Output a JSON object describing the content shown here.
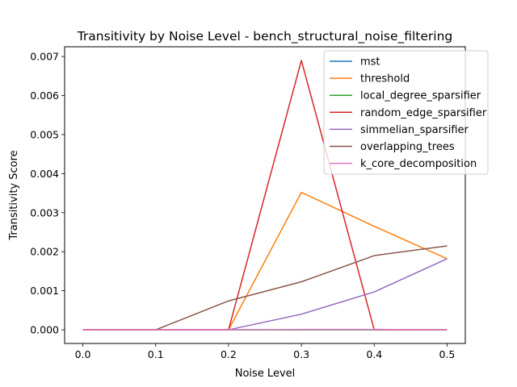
{
  "chart_data": {
    "type": "line",
    "title": "Transitivity by Noise Level - bench_structural_noise_filtering",
    "xlabel": "Noise Level",
    "ylabel": "Transitivity Score",
    "x": [
      0.0,
      0.1,
      0.2,
      0.3,
      0.4,
      0.5
    ],
    "xlim": [
      -0.025,
      0.525
    ],
    "ylim": [
      -0.00035,
      0.00725
    ],
    "x_ticks": [
      "0.0",
      "0.1",
      "0.2",
      "0.3",
      "0.4",
      "0.5"
    ],
    "x_tick_values": [
      0.0,
      0.1,
      0.2,
      0.3,
      0.4,
      0.5
    ],
    "y_ticks": [
      "0.000",
      "0.001",
      "0.002",
      "0.003",
      "0.004",
      "0.005",
      "0.006",
      "0.007"
    ],
    "y_tick_values": [
      0.0,
      0.001,
      0.002,
      0.003,
      0.004,
      0.005,
      0.006,
      0.007
    ],
    "grid": false,
    "legend_position": "top-right",
    "series": [
      {
        "name": "mst",
        "color": "#1f77b4",
        "values": [
          0.0,
          0.0,
          0.0,
          0.0,
          0.0,
          0.0
        ]
      },
      {
        "name": "threshold",
        "color": "#ff7f0e",
        "values": [
          0.0,
          0.0,
          0.0,
          0.00352,
          0.00265,
          0.00182
        ]
      },
      {
        "name": "local_degree_sparsifier",
        "color": "#2ca02c",
        "values": [
          0.0,
          0.0,
          0.0,
          0.0,
          0.0,
          0.0
        ]
      },
      {
        "name": "random_edge_sparsifier",
        "color": "#d62728",
        "values": [
          0.0,
          0.0,
          0.0,
          0.0069,
          0.0,
          0.0
        ]
      },
      {
        "name": "simmelian_sparsifier",
        "color": "#9467bd",
        "values": [
          0.0,
          0.0,
          0.0,
          0.0004,
          0.00097,
          0.00182
        ]
      },
      {
        "name": "overlapping_trees",
        "color": "#8c564b",
        "values": [
          0.0,
          0.0,
          0.00074,
          0.00123,
          0.0019,
          0.00215
        ]
      },
      {
        "name": "k_core_decomposition",
        "color": "#e377c2",
        "values": [
          0.0,
          0.0,
          0.0,
          1e-05,
          1e-05,
          0.0
        ]
      }
    ]
  }
}
